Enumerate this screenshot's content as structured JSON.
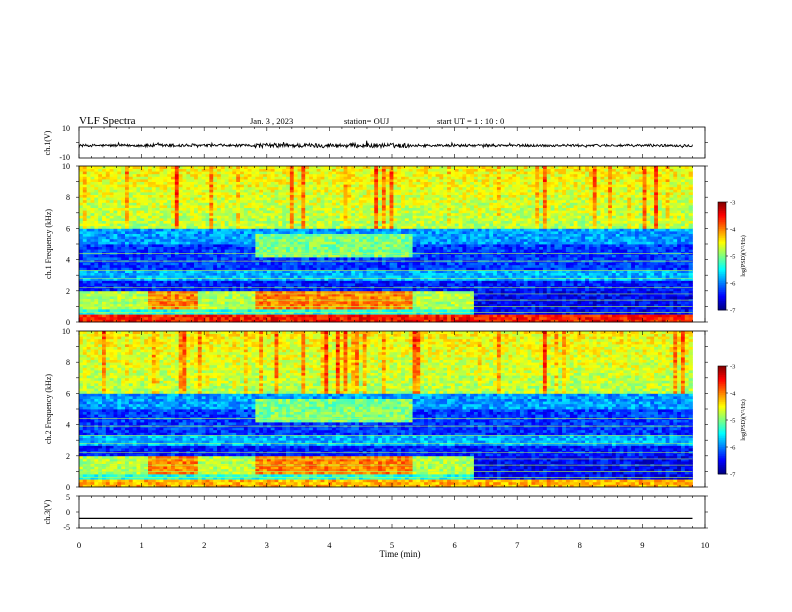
{
  "header": {
    "title": "VLF Spectra",
    "date": "Jan. 3 , 2023",
    "station": "station= OUJ",
    "start": "start  UT =   1 : 10 : 0"
  },
  "chart_data": [
    {
      "type": "line",
      "panel": "ch1-waveform",
      "ylabel": "ch.1(V)",
      "xlim": [
        0,
        10
      ],
      "ylim": [
        -10,
        10
      ],
      "yticks": [
        "10",
        "-10"
      ],
      "series": [
        {
          "values_note": "",
          "baseline": 0,
          "amplitude_range": [
            -2.5,
            2.5
          ],
          "data_end_min": 9.8
        }
      ]
    },
    {
      "type": "heatmap",
      "panel": "ch1-spectrogram",
      "ylabel": "ch.1 Frequency  (kHz)",
      "xlim": [
        0,
        10
      ],
      "ylim": [
        0,
        10
      ],
      "yticks": [
        "0",
        "2",
        "4",
        "6",
        "8",
        "10"
      ],
      "colorbar": {
        "label": "log(PSD)(V²/Hz)",
        "range": [
          -7,
          -3
        ],
        "ticks": [
          "-3",
          "-4",
          "-5",
          "-6",
          "-7"
        ]
      },
      "data_end_min": 9.8
    },
    {
      "type": "heatmap",
      "panel": "ch2-spectrogram",
      "ylabel": "ch.2 Frequency  (kHz)",
      "xlim": [
        0,
        10
      ],
      "ylim": [
        0,
        10
      ],
      "yticks": [
        "0",
        "2",
        "4",
        "6",
        "8",
        "10"
      ],
      "colorbar": {
        "label": "log(PSD)(V²/Hz)",
        "range": [
          -7,
          -3
        ],
        "ticks": [
          "-3",
          "-4",
          "-5",
          "-6",
          "-7"
        ]
      },
      "data_end_min": 9.8
    },
    {
      "type": "line",
      "panel": "ch3-waveform",
      "ylabel": "ch.3(V)",
      "xlim": [
        0,
        10
      ],
      "ylim": [
        -5,
        5
      ],
      "yticks": [
        "5",
        "0",
        "-5"
      ],
      "series": [
        {
          "x": [
            0,
            9.8
          ],
          "y": [
            -2,
            -2
          ]
        }
      ]
    }
  ],
  "xaxis": {
    "label": "Time  (min)",
    "ticks": [
      "0",
      "1",
      "2",
      "3",
      "4",
      "5",
      "6",
      "7",
      "8",
      "9",
      "10"
    ]
  }
}
